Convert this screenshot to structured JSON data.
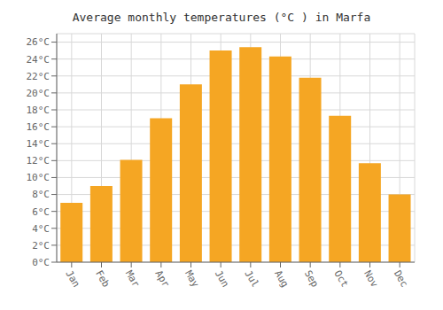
{
  "chart_data": {
    "type": "bar",
    "title": "Average monthly temperatures (°C ) in Marfa",
    "categories": [
      "Jan",
      "Feb",
      "Mar",
      "Apr",
      "May",
      "Jun",
      "Jul",
      "Aug",
      "Sep",
      "Oct",
      "Nov",
      "Dec"
    ],
    "values": [
      7.0,
      9.0,
      12.1,
      17.0,
      21.0,
      25.0,
      25.4,
      24.3,
      21.8,
      17.3,
      11.7,
      8.0
    ],
    "color": "#F5A623",
    "ylim": [
      0,
      27
    ],
    "yticks": [
      {
        "value": 0,
        "label": "0°C"
      },
      {
        "value": 2,
        "label": "2°C"
      },
      {
        "value": 4,
        "label": "4°C"
      },
      {
        "value": 6,
        "label": "6°C"
      },
      {
        "value": 8,
        "label": "8°C"
      },
      {
        "value": 10,
        "label": "10°C"
      },
      {
        "value": 12,
        "label": "12°C"
      },
      {
        "value": 14,
        "label": "14°C"
      },
      {
        "value": 16,
        "label": "16°C"
      },
      {
        "value": 18,
        "label": "18°C"
      },
      {
        "value": 20,
        "label": "20°C"
      },
      {
        "value": 22,
        "label": "22°C"
      },
      {
        "value": 24,
        "label": "24°C"
      },
      {
        "value": 26,
        "label": "26°C"
      }
    ],
    "grid": true
  }
}
